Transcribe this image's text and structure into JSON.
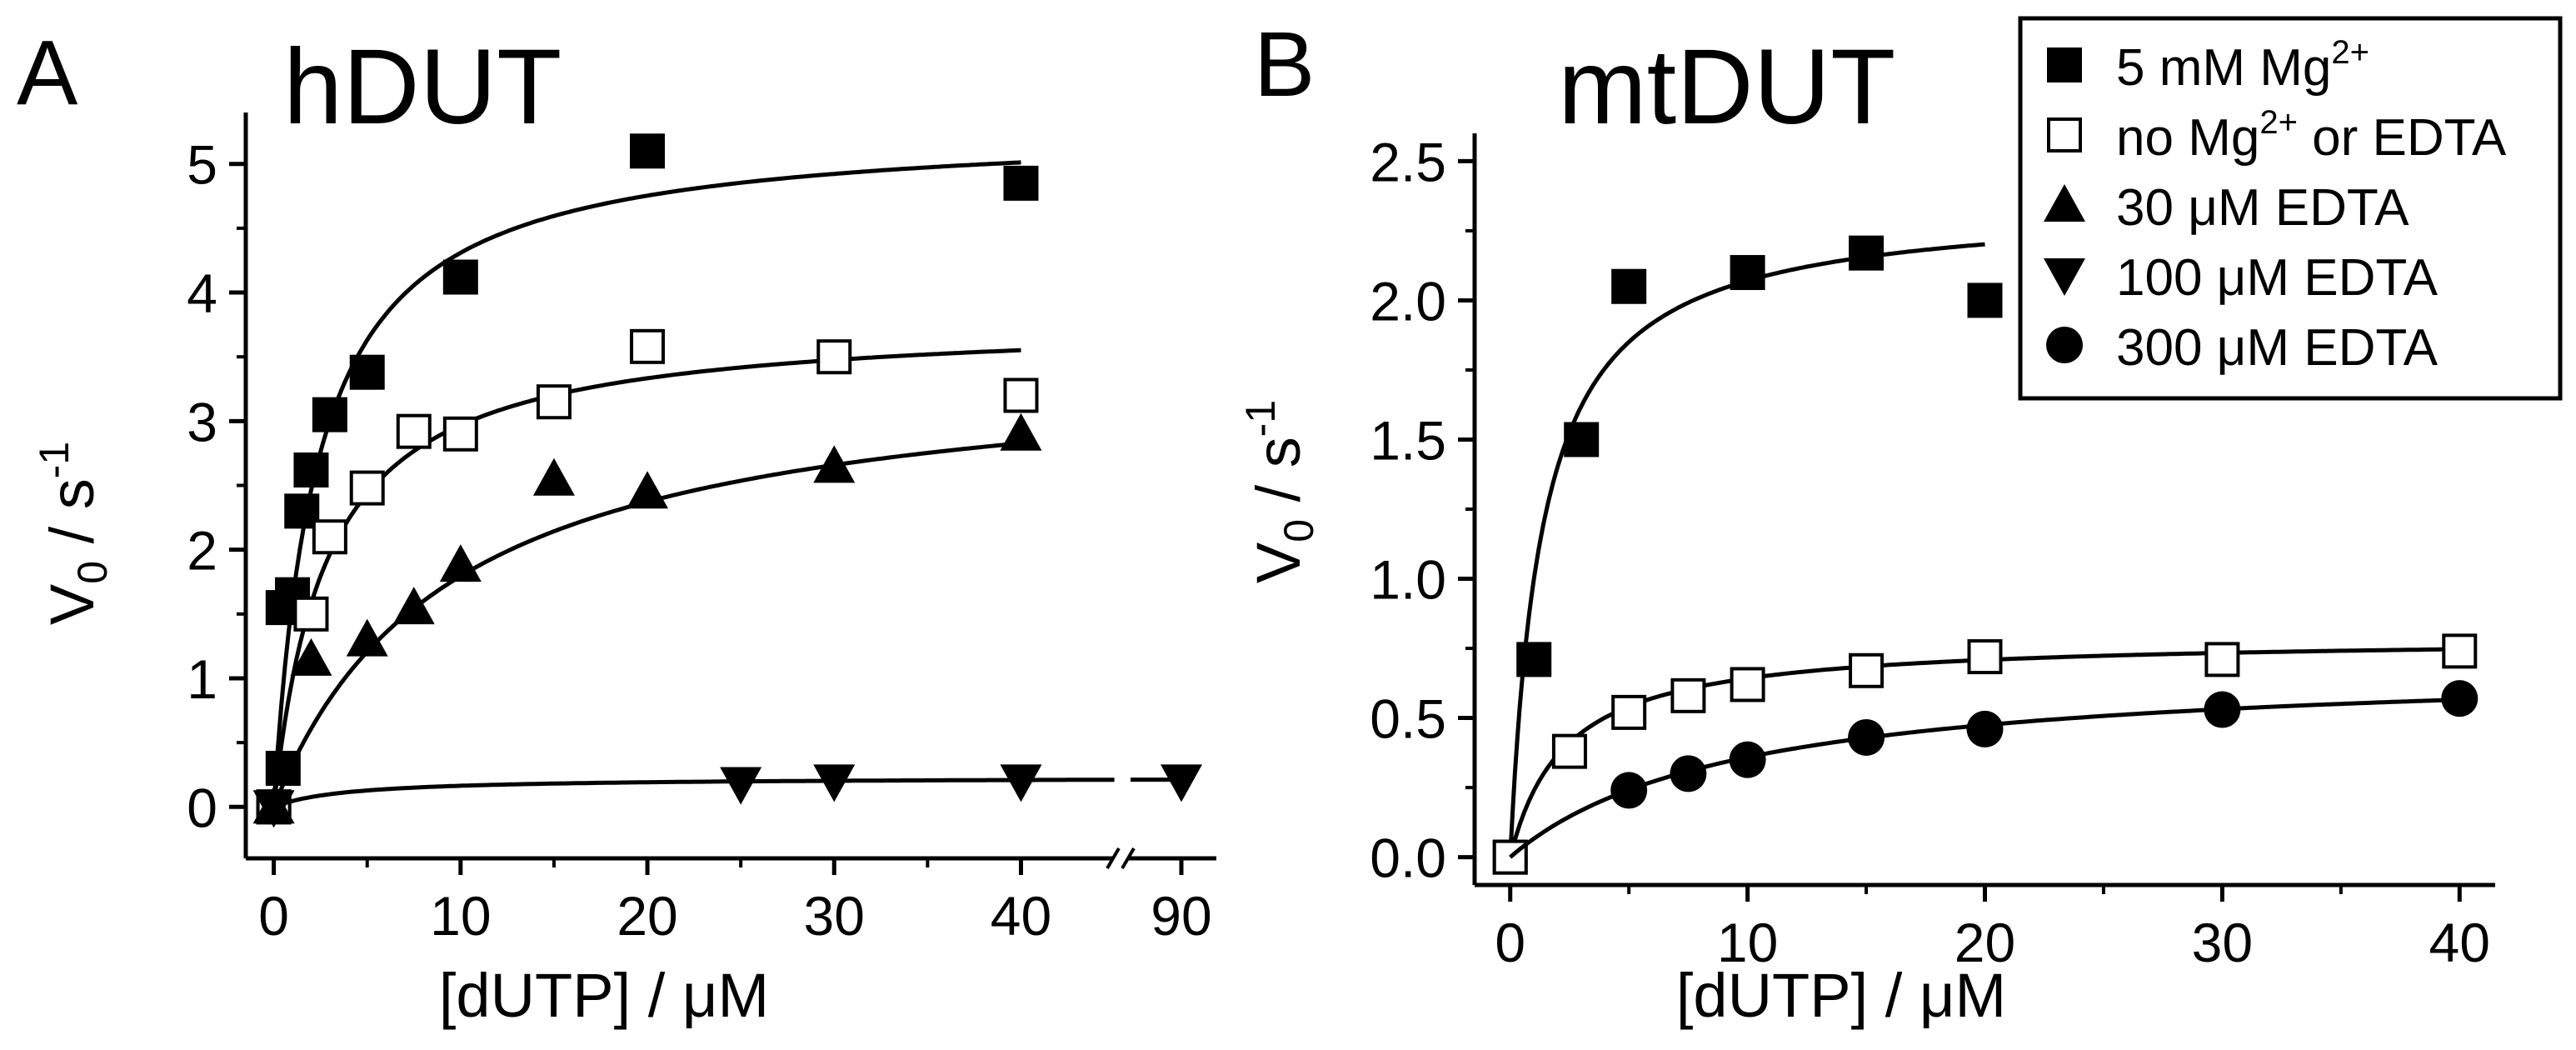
{
  "colors": {
    "ink": "#000000",
    "background": "#ffffff"
  },
  "legend": [
    {
      "marker": "square-filled",
      "label": "5 mM Mg",
      "sup": "2+",
      "label2": ""
    },
    {
      "marker": "square-open",
      "label": "no Mg",
      "sup": "2+",
      "label2": " or EDTA"
    },
    {
      "marker": "triangle-up",
      "label": "30 μM EDTA",
      "sup": "",
      "label2": ""
    },
    {
      "marker": "triangle-down",
      "label": "100 μM EDTA",
      "sup": "",
      "label2": ""
    },
    {
      "marker": "circle",
      "label": "300 μM EDTA",
      "sup": "",
      "label2": ""
    }
  ],
  "chart_data": [
    {
      "type": "scatter",
      "panel_letter": "A",
      "title": "hDUT",
      "xlabel": "[dUTP] / μM",
      "ylabel_main": "V",
      "ylabel_sub": "0",
      "ylabel_rest": " / s",
      "ylabel_sup": "-1",
      "xlim": [
        -1.5,
        46
      ],
      "ylim": [
        -0.4,
        5.4
      ],
      "xticks": [
        0,
        10,
        20,
        30,
        40
      ],
      "xtick_labels": [
        "0",
        "10",
        "20",
        "30",
        "40"
      ],
      "axis_break": {
        "after": 44.5,
        "ticks": [
          {
            "x": 90,
            "label": "90"
          }
        ]
      },
      "yticks": [
        0,
        1,
        2,
        3,
        4,
        5
      ],
      "ytick_labels": [
        "0",
        "1",
        "2",
        "3",
        "4",
        "5"
      ],
      "series": [
        {
          "name": "5 mM Mg2+",
          "marker": "square-filled",
          "points": [
            [
              0,
              0
            ],
            [
              0.5,
              0.3
            ],
            [
              0.5,
              1.55
            ],
            [
              1,
              1.65
            ],
            [
              1.5,
              2.3
            ],
            [
              2,
              2.62
            ],
            [
              3,
              3.05
            ],
            [
              5,
              3.38
            ],
            [
              10,
              4.12
            ],
            [
              20,
              5.1
            ],
            [
              40,
              4.85
            ]
          ],
          "fit": {
            "vmax": 5.3,
            "km": 2.3,
            "to": 40
          }
        },
        {
          "name": "no Mg2+ or EDTA",
          "marker": "square-open",
          "points": [
            [
              0,
              0
            ],
            [
              2,
              1.5
            ],
            [
              3,
              2.1
            ],
            [
              5,
              2.48
            ],
            [
              7.5,
              2.92
            ],
            [
              10,
              2.9
            ],
            [
              15,
              3.15
            ],
            [
              20,
              3.58
            ],
            [
              30,
              3.5
            ],
            [
              40,
              3.2
            ]
          ],
          "fit": {
            "vmax": 3.8,
            "km": 2.8,
            "to": 40
          }
        },
        {
          "name": "30 μM EDTA",
          "marker": "triangle-up",
          "points": [
            [
              0,
              0
            ],
            [
              2,
              1.15
            ],
            [
              5,
              1.3
            ],
            [
              7.5,
              1.55
            ],
            [
              10,
              1.88
            ],
            [
              15,
              2.55
            ],
            [
              20,
              2.45
            ],
            [
              30,
              2.65
            ],
            [
              40,
              2.9
            ]
          ],
          "fit": {
            "vmax": 3.5,
            "km": 9.5,
            "to": 40
          }
        },
        {
          "name": "100 μM EDTA",
          "marker": "triangle-down",
          "points": [
            [
              0,
              0
            ],
            [
              25,
              0.18
            ],
            [
              30,
              0.2
            ],
            [
              40,
              0.2
            ],
            [
              90,
              0.2
            ]
          ],
          "fit": {
            "vmax": 0.23,
            "km": 4,
            "to": 45,
            "break_segment": [
              45.8,
              90
            ]
          }
        }
      ]
    },
    {
      "type": "scatter",
      "panel_letter": "B",
      "title": "mtDUT",
      "xlabel": "[dUTP] / μM",
      "ylabel_main": "V",
      "ylabel_sub": "0",
      "ylabel_rest": " / s",
      "ylabel_sup": "-1",
      "xlim": [
        -1.5,
        41.5
      ],
      "ylim": [
        -0.1,
        2.6
      ],
      "xticks": [
        0,
        10,
        20,
        30,
        40
      ],
      "xtick_labels": [
        "0",
        "10",
        "20",
        "30",
        "40"
      ],
      "yticks": [
        0,
        0.5,
        1,
        1.5,
        2,
        2.5
      ],
      "ytick_labels": [
        "0.0",
        "0.5",
        "1.0",
        "1.5",
        "2.0",
        "2.5"
      ],
      "series": [
        {
          "name": "5 mM Mg2+",
          "marker": "square-filled",
          "points": [
            [
              0,
              0
            ],
            [
              1,
              0.71
            ],
            [
              3,
              1.5
            ],
            [
              5,
              2.05
            ],
            [
              10,
              2.1
            ],
            [
              15,
              2.17
            ],
            [
              20,
              2.0
            ]
          ],
          "fit": {
            "vmax": 2.35,
            "km": 1.35,
            "to": 20
          }
        },
        {
          "name": "no Mg2+ or EDTA",
          "marker": "square-open",
          "points": [
            [
              0,
              0
            ],
            [
              2.5,
              0.38
            ],
            [
              5,
              0.52
            ],
            [
              7.5,
              0.58
            ],
            [
              10,
              0.62
            ],
            [
              15,
              0.67
            ],
            [
              20,
              0.72
            ],
            [
              30,
              0.71
            ],
            [
              40,
              0.74
            ]
          ],
          "fit": {
            "vmax": 0.79,
            "km": 2.3,
            "to": 40
          }
        },
        {
          "name": "300 μM EDTA",
          "marker": "circle",
          "points": [
            [
              5,
              0.24
            ],
            [
              7.5,
              0.3
            ],
            [
              10,
              0.35
            ],
            [
              15,
              0.43
            ],
            [
              20,
              0.46
            ],
            [
              30,
              0.53
            ],
            [
              40,
              0.57
            ]
          ],
          "fit": {
            "vmax": 0.7,
            "km": 9.5,
            "to": 40
          }
        }
      ]
    }
  ]
}
